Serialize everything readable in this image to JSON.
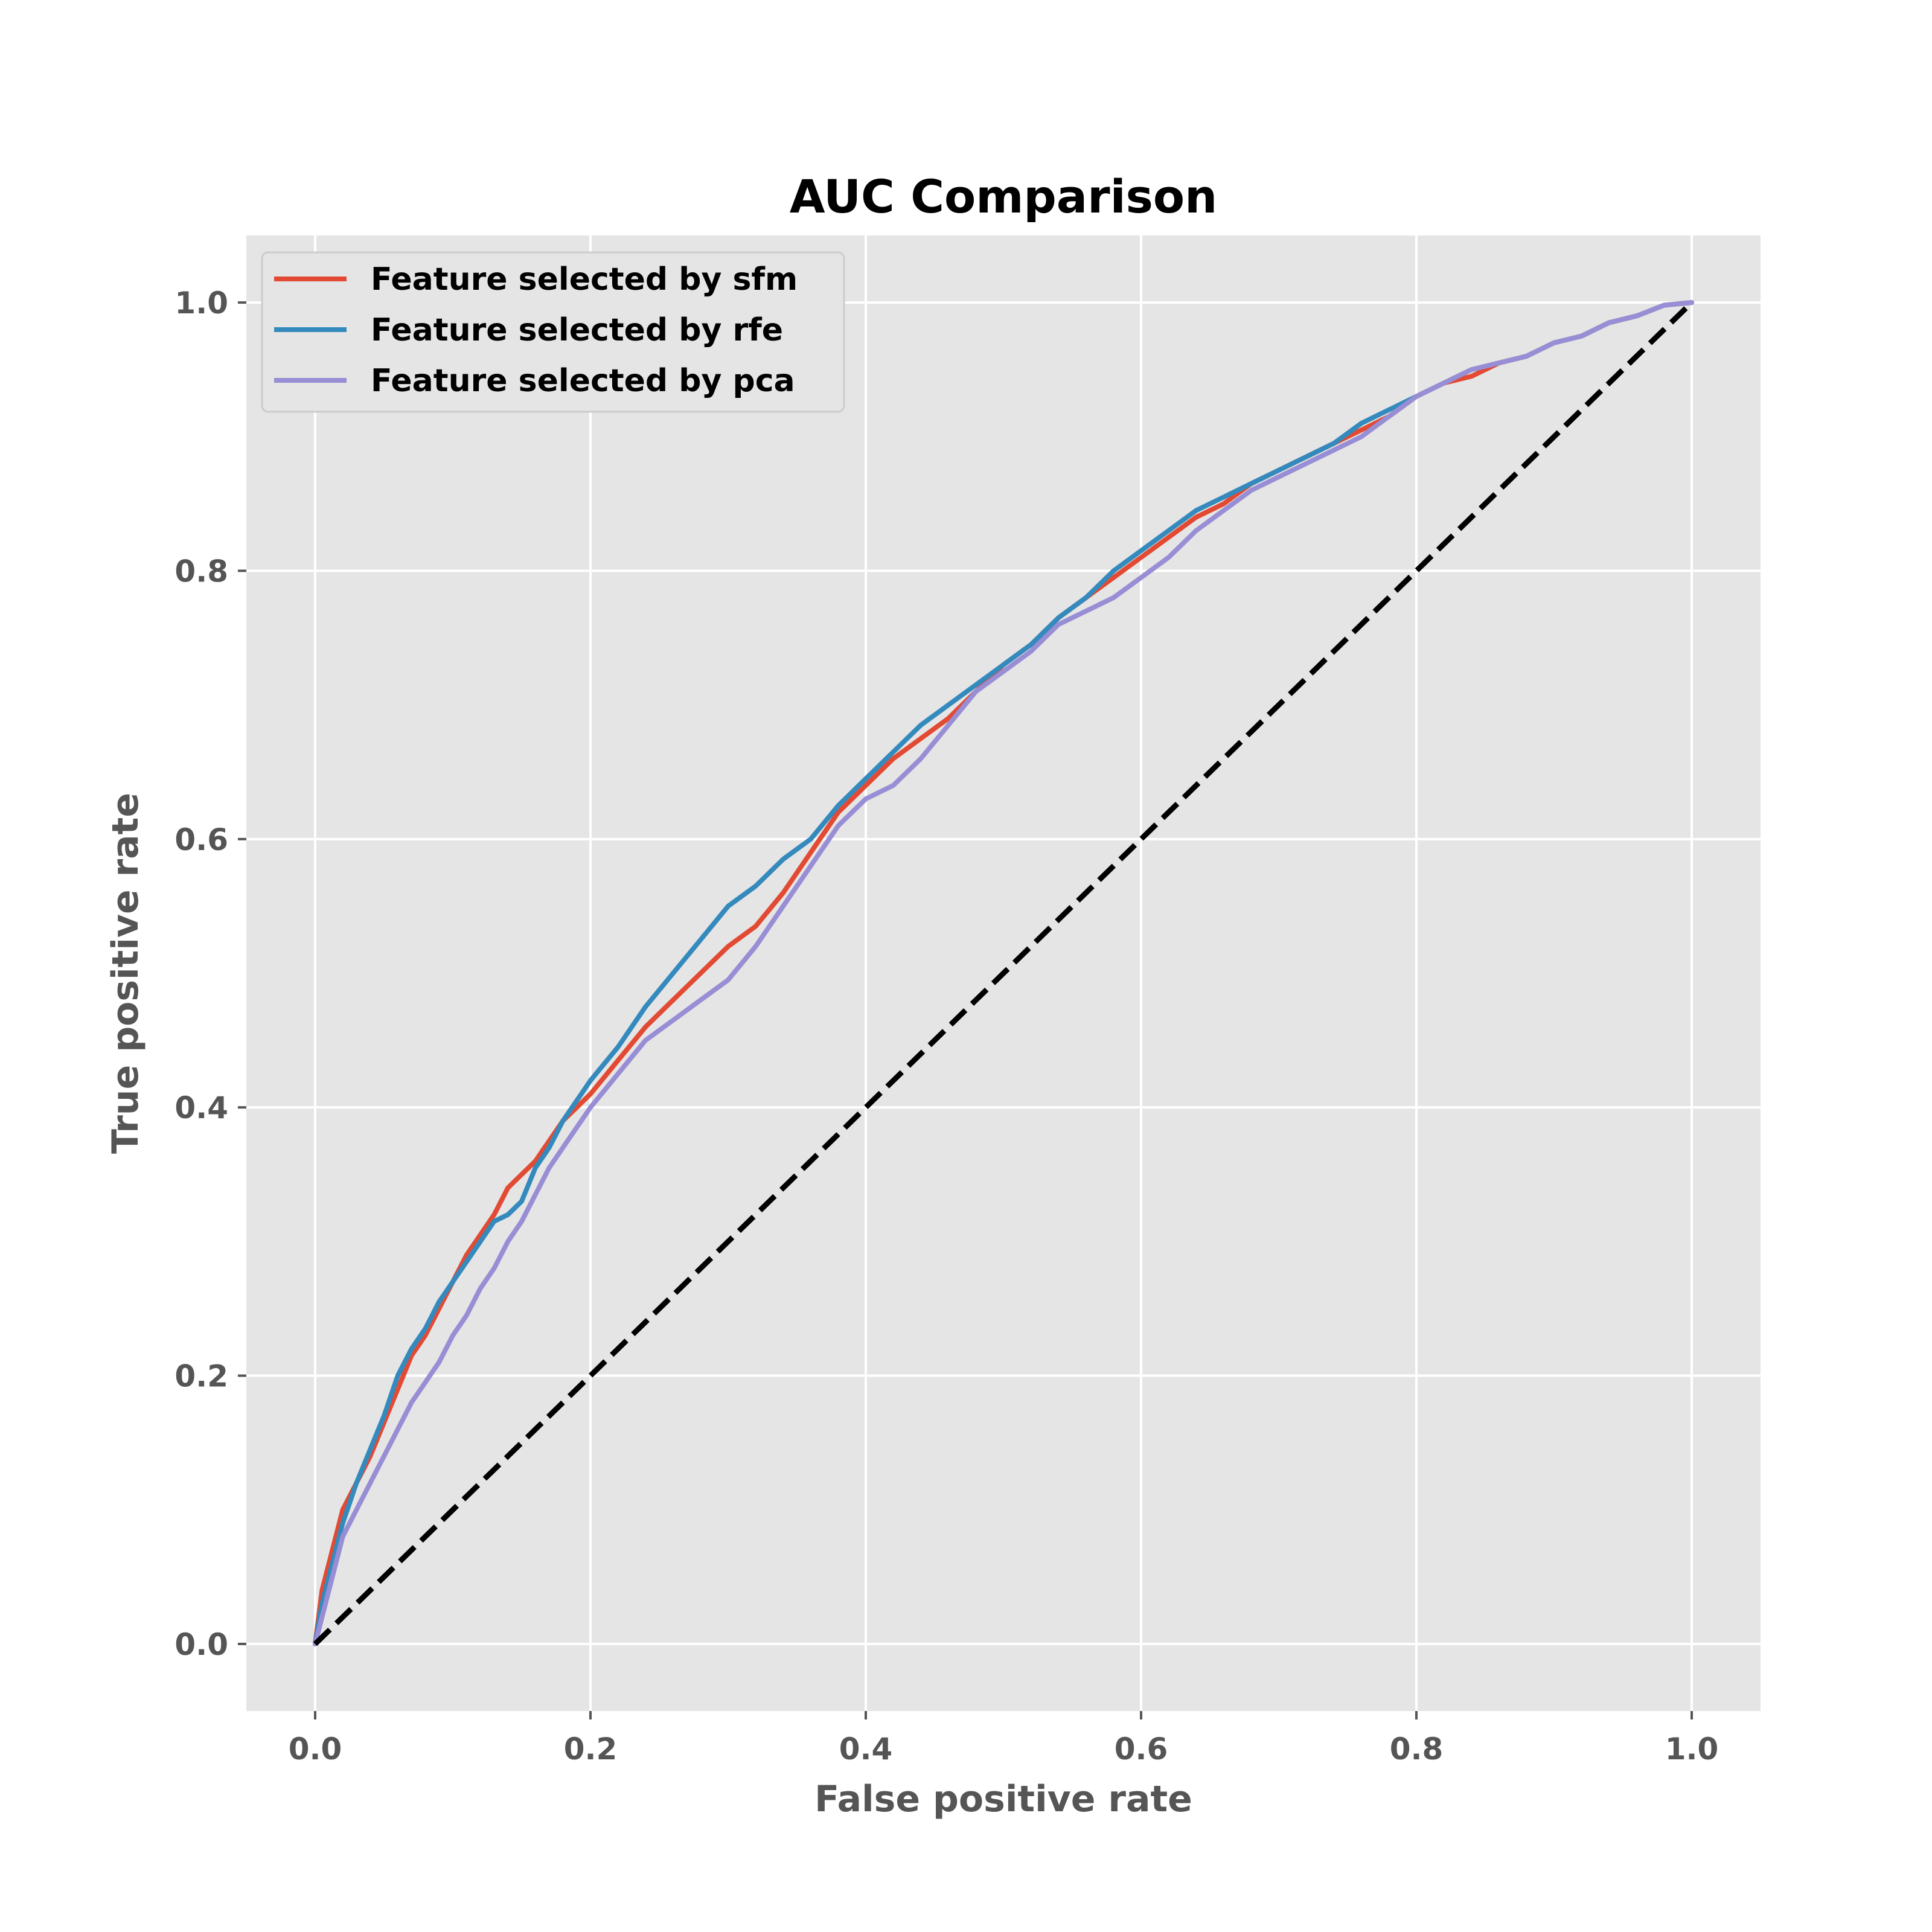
{
  "chart_data": {
    "type": "line",
    "title": "AUC Comparison",
    "xlabel": "False positive rate",
    "ylabel": "True positive rate",
    "xlim": [
      -0.05,
      1.05
    ],
    "ylim": [
      -0.05,
      1.05
    ],
    "xticks": [
      0.0,
      0.2,
      0.4,
      0.6,
      0.8,
      1.0
    ],
    "yticks": [
      0.0,
      0.2,
      0.4,
      0.6,
      0.8,
      1.0
    ],
    "xtick_labels": [
      "0.0",
      "0.2",
      "0.4",
      "0.6",
      "0.8",
      "1.0"
    ],
    "ytick_labels": [
      "0.0",
      "0.2",
      "0.4",
      "0.6",
      "0.8",
      "1.0"
    ],
    "grid": true,
    "legend_position": "top-left",
    "series": [
      {
        "name": "Feature selected by sfm",
        "color": "#E24A33",
        "x": [
          0.0,
          0.005,
          0.01,
          0.02,
          0.03,
          0.04,
          0.05,
          0.06,
          0.07,
          0.08,
          0.09,
          0.1,
          0.11,
          0.12,
          0.13,
          0.14,
          0.15,
          0.16,
          0.17,
          0.18,
          0.19,
          0.2,
          0.22,
          0.24,
          0.26,
          0.28,
          0.3,
          0.32,
          0.34,
          0.36,
          0.38,
          0.4,
          0.42,
          0.44,
          0.46,
          0.48,
          0.5,
          0.52,
          0.54,
          0.56,
          0.58,
          0.6,
          0.62,
          0.64,
          0.66,
          0.68,
          0.7,
          0.72,
          0.74,
          0.76,
          0.78,
          0.8,
          0.82,
          0.84,
          0.86,
          0.88,
          0.9,
          0.92,
          0.94,
          0.96,
          0.98,
          1.0
        ],
        "y": [
          0.0,
          0.04,
          0.06,
          0.1,
          0.12,
          0.14,
          0.165,
          0.19,
          0.215,
          0.23,
          0.25,
          0.27,
          0.29,
          0.305,
          0.32,
          0.34,
          0.35,
          0.36,
          0.375,
          0.39,
          0.4,
          0.41,
          0.435,
          0.46,
          0.48,
          0.5,
          0.52,
          0.535,
          0.56,
          0.59,
          0.62,
          0.64,
          0.66,
          0.675,
          0.69,
          0.71,
          0.73,
          0.745,
          0.765,
          0.78,
          0.795,
          0.81,
          0.825,
          0.84,
          0.85,
          0.865,
          0.875,
          0.885,
          0.895,
          0.905,
          0.915,
          0.93,
          0.94,
          0.945,
          0.955,
          0.96,
          0.97,
          0.975,
          0.985,
          0.99,
          0.998,
          1.0
        ]
      },
      {
        "name": "Feature selected by rfe",
        "color": "#348ABD",
        "x": [
          0.0,
          0.005,
          0.01,
          0.02,
          0.03,
          0.04,
          0.05,
          0.06,
          0.07,
          0.08,
          0.09,
          0.1,
          0.11,
          0.12,
          0.13,
          0.14,
          0.15,
          0.16,
          0.17,
          0.18,
          0.19,
          0.2,
          0.22,
          0.24,
          0.26,
          0.28,
          0.3,
          0.32,
          0.34,
          0.36,
          0.38,
          0.4,
          0.42,
          0.44,
          0.46,
          0.48,
          0.5,
          0.52,
          0.54,
          0.56,
          0.58,
          0.6,
          0.62,
          0.64,
          0.66,
          0.68,
          0.7,
          0.72,
          0.74,
          0.76,
          0.78,
          0.8,
          0.82,
          0.84,
          0.86,
          0.88,
          0.9,
          0.92,
          0.94,
          0.96,
          0.98,
          1.0
        ],
        "y": [
          0.0,
          0.03,
          0.05,
          0.09,
          0.12,
          0.145,
          0.17,
          0.2,
          0.22,
          0.235,
          0.255,
          0.27,
          0.285,
          0.3,
          0.315,
          0.32,
          0.33,
          0.355,
          0.37,
          0.39,
          0.405,
          0.42,
          0.445,
          0.475,
          0.5,
          0.525,
          0.55,
          0.565,
          0.585,
          0.6,
          0.625,
          0.645,
          0.665,
          0.685,
          0.7,
          0.715,
          0.73,
          0.745,
          0.765,
          0.78,
          0.8,
          0.815,
          0.83,
          0.845,
          0.855,
          0.865,
          0.875,
          0.885,
          0.895,
          0.91,
          0.92,
          0.93,
          0.94,
          0.95,
          0.955,
          0.96,
          0.97,
          0.975,
          0.985,
          0.99,
          0.998,
          1.0
        ]
      },
      {
        "name": "Feature selected by pca",
        "color": "#988ED5",
        "x": [
          0.0,
          0.005,
          0.01,
          0.02,
          0.03,
          0.04,
          0.05,
          0.06,
          0.07,
          0.08,
          0.09,
          0.1,
          0.11,
          0.12,
          0.13,
          0.14,
          0.15,
          0.16,
          0.17,
          0.18,
          0.19,
          0.2,
          0.22,
          0.24,
          0.26,
          0.28,
          0.3,
          0.32,
          0.34,
          0.36,
          0.38,
          0.4,
          0.42,
          0.44,
          0.46,
          0.48,
          0.5,
          0.52,
          0.54,
          0.56,
          0.58,
          0.6,
          0.62,
          0.64,
          0.66,
          0.68,
          0.7,
          0.72,
          0.74,
          0.76,
          0.78,
          0.8,
          0.82,
          0.84,
          0.86,
          0.88,
          0.9,
          0.92,
          0.94,
          0.96,
          0.98,
          1.0
        ],
        "y": [
          0.0,
          0.02,
          0.04,
          0.08,
          0.1,
          0.12,
          0.14,
          0.16,
          0.18,
          0.195,
          0.21,
          0.23,
          0.245,
          0.265,
          0.28,
          0.3,
          0.315,
          0.335,
          0.355,
          0.37,
          0.385,
          0.4,
          0.425,
          0.45,
          0.465,
          0.48,
          0.495,
          0.52,
          0.55,
          0.58,
          0.61,
          0.63,
          0.64,
          0.66,
          0.685,
          0.71,
          0.725,
          0.74,
          0.76,
          0.77,
          0.78,
          0.795,
          0.81,
          0.83,
          0.845,
          0.86,
          0.87,
          0.88,
          0.89,
          0.9,
          0.915,
          0.93,
          0.94,
          0.95,
          0.955,
          0.96,
          0.97,
          0.975,
          0.985,
          0.99,
          0.998,
          1.0
        ]
      },
      {
        "name": "",
        "color": "#000000",
        "style": "dashed",
        "x": [
          0.0,
          1.0
        ],
        "y": [
          0.0,
          1.0
        ]
      }
    ]
  }
}
